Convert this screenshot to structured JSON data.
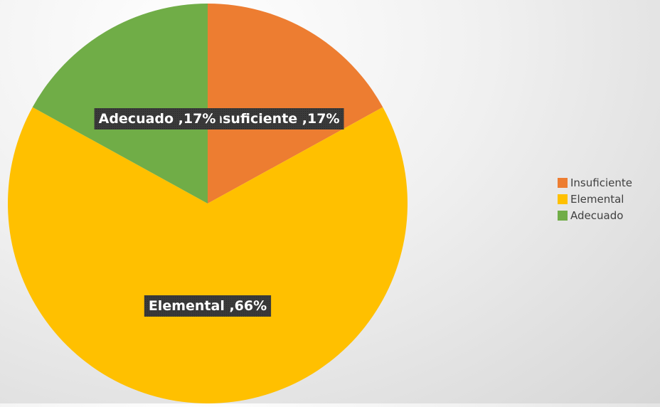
{
  "chart_data": {
    "type": "pie",
    "slices": [
      {
        "name": "Insuficiente",
        "value": 17,
        "label": "Insuficiente ,17%",
        "color": "#ED7D31"
      },
      {
        "name": "Elemental",
        "value": 66,
        "label": "Elemental ,66%",
        "color": "#FFC000"
      },
      {
        "name": "Adecuado",
        "value": 17,
        "label": "Adecuado ,17%",
        "color": "#70AD47"
      }
    ],
    "legend": [
      "Insuficiente",
      "Elemental",
      "Adecuado"
    ],
    "legend_position": "right",
    "start_angle": "12 o'clock, clockwise"
  }
}
